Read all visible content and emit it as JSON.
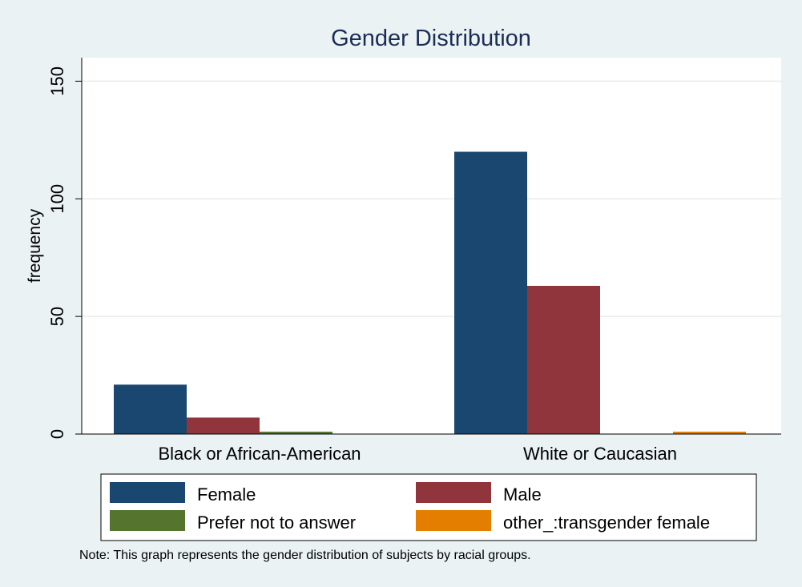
{
  "chart_data": {
    "type": "bar",
    "title": "Gender Distribution",
    "ylabel": "frequency",
    "xlabel": "",
    "categories": [
      "Black or African-American",
      "White or Caucasian"
    ],
    "ylim": [
      0,
      160
    ],
    "yticks": [
      0,
      50,
      100,
      150
    ],
    "grid": true,
    "legend_position": "bottom",
    "series": [
      {
        "name": "Female",
        "values": [
          21,
          120
        ],
        "color": "#1a476f"
      },
      {
        "name": "Male",
        "values": [
          7,
          63
        ],
        "color": "#90353b"
      },
      {
        "name": "Prefer not to answer",
        "values": [
          1,
          0
        ],
        "color": "#55752f"
      },
      {
        "name": "other_:transgender female",
        "values": [
          0,
          1
        ],
        "color": "#e37e00"
      }
    ],
    "note": "Note: This graph represents the gender distribution of subjects by racial groups."
  }
}
